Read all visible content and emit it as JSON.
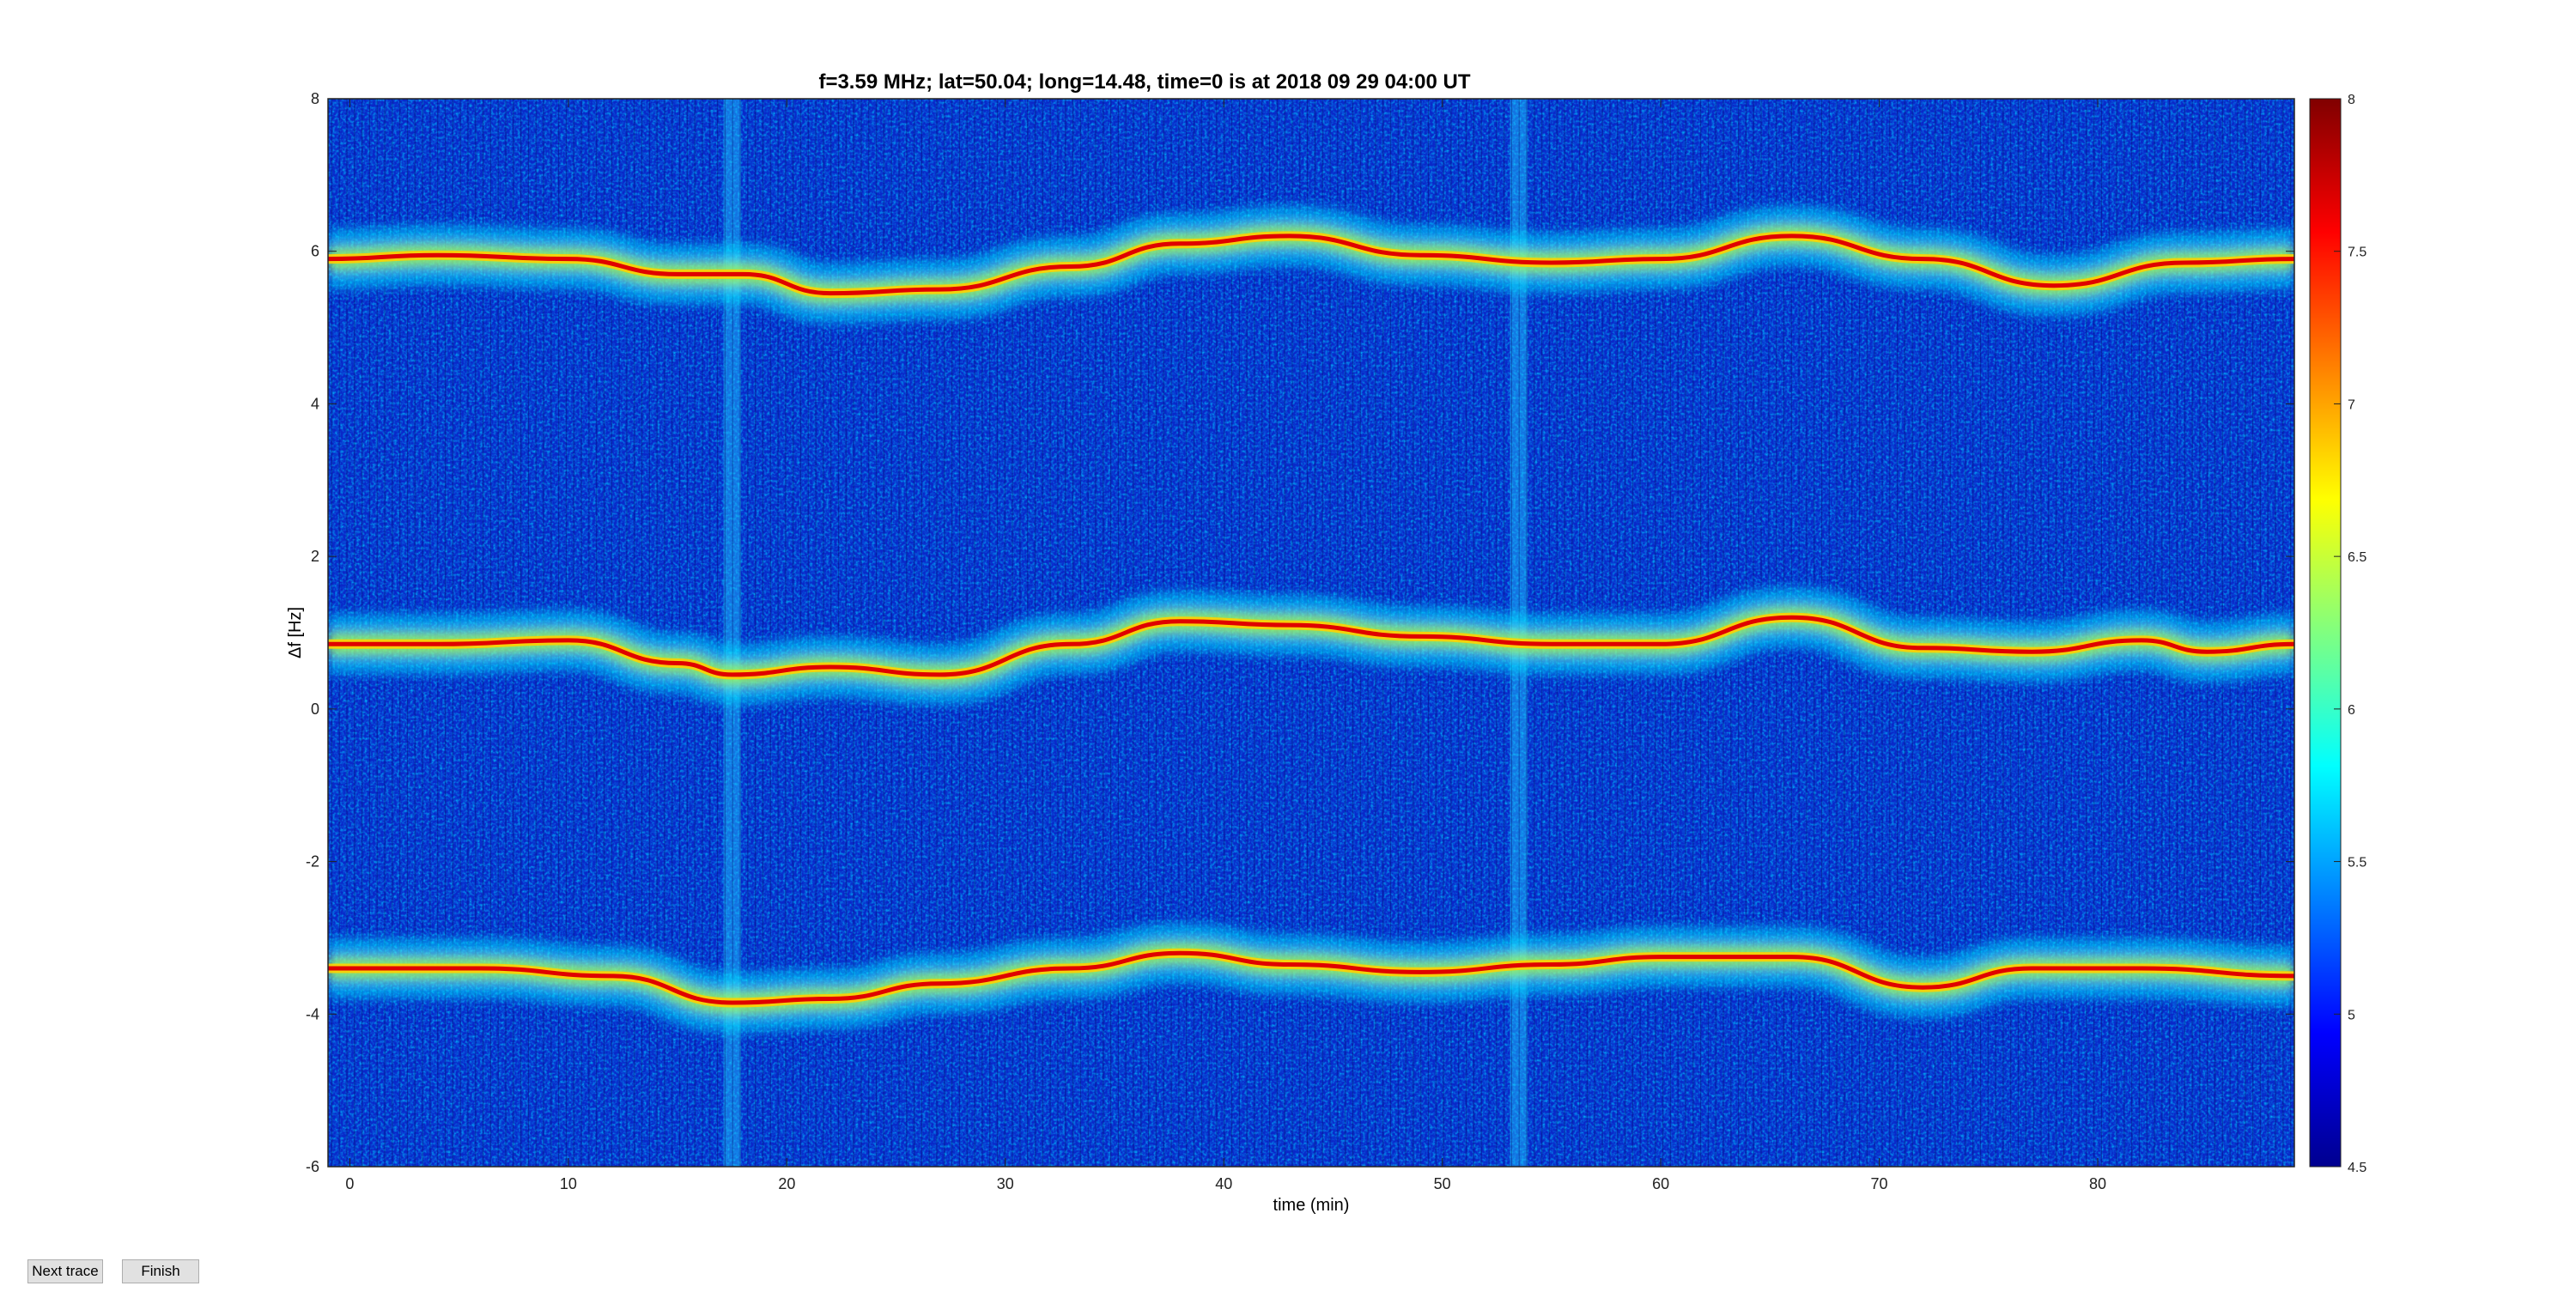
{
  "buttons": {
    "next_label": "Next trace",
    "finish_label": "Finish"
  },
  "chart_data": {
    "type": "heatmap",
    "title": "f=3.59 MHz;  lat=50.04; long=14.48, time=0 is at 2018 09 29 04:00 UT",
    "xlabel": "time (min)",
    "ylabel": "Δf [Hz]",
    "xlim": [
      -1,
      89
    ],
    "ylim": [
      -6,
      8
    ],
    "xticks": [
      0,
      10,
      20,
      30,
      40,
      50,
      60,
      70,
      80
    ],
    "yticks": [
      -6,
      -4,
      -2,
      0,
      2,
      4,
      6,
      8
    ],
    "colorbar": {
      "clim": [
        4.5,
        8
      ],
      "ticks": [
        4.5,
        5,
        5.5,
        6,
        6.5,
        7,
        7.5,
        8
      ],
      "tick_labels": [
        "4.5",
        "5",
        "5.5",
        "6",
        "6.5",
        "7",
        "7.5",
        "8"
      ],
      "colormap": "jet"
    },
    "series": [
      {
        "x": [
          -1,
          4,
          10,
          15,
          18,
          22,
          27,
          33,
          38,
          43,
          49,
          55,
          60,
          66,
          72,
          78,
          84,
          89
        ],
        "y": [
          5.9,
          5.95,
          5.9,
          5.7,
          5.7,
          5.45,
          5.5,
          5.8,
          6.1,
          6.2,
          5.95,
          5.85,
          5.9,
          6.2,
          5.9,
          5.55,
          5.85,
          5.9
        ]
      },
      {
        "x": [
          -1,
          4,
          10,
          15,
          17.5,
          22,
          27,
          33,
          38,
          43,
          49,
          55,
          60,
          66,
          72,
          77,
          82,
          85,
          89
        ],
        "y": [
          0.85,
          0.85,
          0.9,
          0.6,
          0.45,
          0.55,
          0.45,
          0.85,
          1.15,
          1.1,
          0.95,
          0.85,
          0.85,
          1.2,
          0.8,
          0.75,
          0.9,
          0.75,
          0.85
        ]
      },
      {
        "x": [
          -1,
          2,
          6,
          12,
          17.5,
          22,
          27,
          33,
          38,
          43,
          49,
          55,
          60,
          66,
          72,
          77,
          82,
          89
        ],
        "y": [
          -3.4,
          -3.4,
          -3.4,
          -3.5,
          -3.85,
          -3.8,
          -3.6,
          -3.4,
          -3.2,
          -3.35,
          -3.45,
          -3.35,
          -3.25,
          -3.25,
          -3.65,
          -3.4,
          -3.4,
          -3.5
        ]
      }
    ],
    "vertical_stripes_x": [
      17.5,
      53.5
    ]
  }
}
